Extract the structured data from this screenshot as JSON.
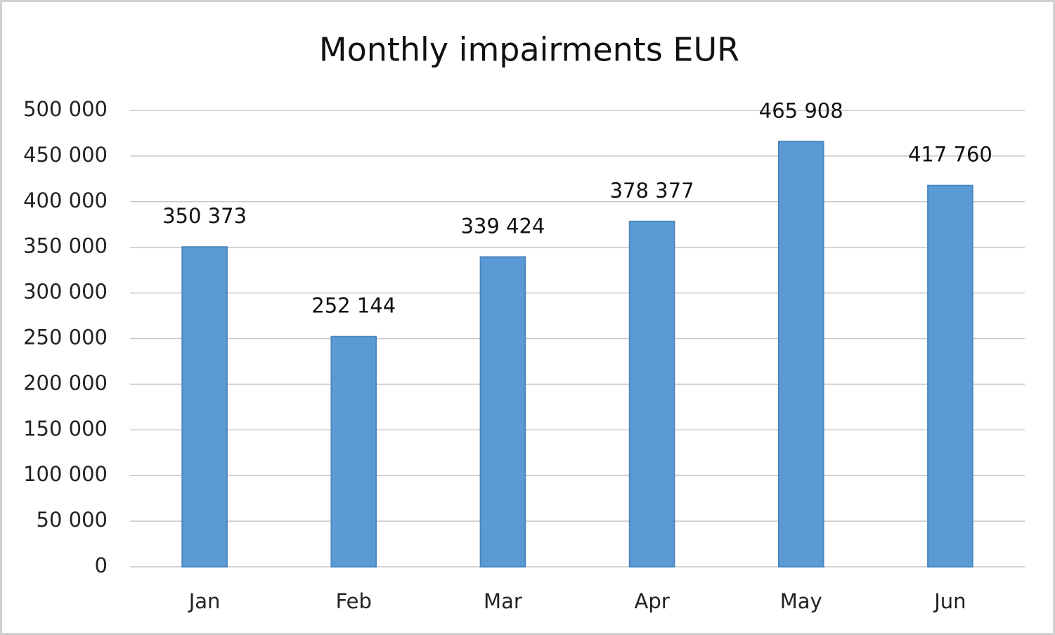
{
  "chart_data": {
    "type": "bar",
    "title": "Monthly impairments EUR",
    "categories": [
      "Jan",
      "Feb",
      "Mar",
      "Apr",
      "May",
      "Jun"
    ],
    "values": [
      350373,
      252144,
      339424,
      378377,
      465908,
      417760
    ],
    "value_labels": [
      "350 373",
      "252 144",
      "339 424",
      "378 377",
      "465 908",
      "417 760"
    ],
    "color": "#5b9bd5",
    "ylim": [
      0,
      500000
    ],
    "yticks": [
      0,
      {
        "value": 50000,
        "label": "50 000"
      },
      {
        "value": 100000,
        "label": "100 000"
      },
      {
        "value": 150000,
        "label": "150 000"
      },
      {
        "value": 200000,
        "label": "200 000"
      },
      {
        "value": 250000,
        "label": "250 000"
      },
      {
        "value": 300000,
        "label": "300 000"
      },
      {
        "value": 350000,
        "label": "350 000"
      },
      {
        "value": 400000,
        "label": "400 000"
      },
      {
        "value": 450000,
        "label": "450 000"
      },
      {
        "value": 500000,
        "label": "500 000"
      }
    ],
    "grid": true
  }
}
